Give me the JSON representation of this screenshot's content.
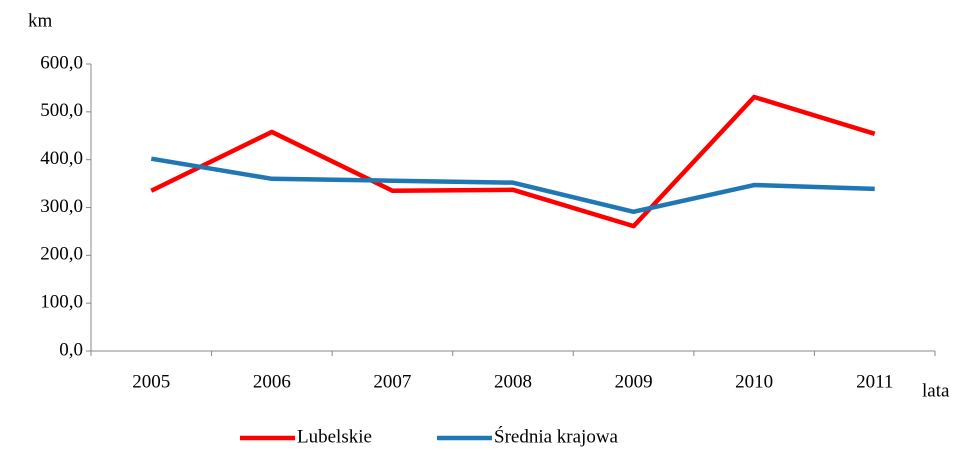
{
  "chart_data": {
    "type": "line",
    "y_label": "km",
    "x_label": "lata",
    "categories": [
      "2005",
      "2006",
      "2007",
      "2008",
      "2009",
      "2010",
      "2011"
    ],
    "series": [
      {
        "name": "Lubelskie",
        "color": "#ff0000",
        "values": [
          335,
          458,
          335,
          337,
          261,
          531,
          454
        ]
      },
      {
        "name": "Średnia krajowa",
        "color": "#1f77b4",
        "values": [
          402,
          360,
          356,
          352,
          291,
          347,
          339
        ]
      }
    ],
    "ylim": [
      0,
      600
    ],
    "yticks": [
      {
        "value": 0,
        "label": "0,0"
      },
      {
        "value": 100,
        "label": "100,0"
      },
      {
        "value": 200,
        "label": "200,0"
      },
      {
        "value": 300,
        "label": "300,0"
      },
      {
        "value": 400,
        "label": "400,0"
      },
      {
        "value": 500,
        "label": "500,0"
      },
      {
        "value": 600,
        "label": "600,0"
      }
    ],
    "legend": "bottom"
  }
}
